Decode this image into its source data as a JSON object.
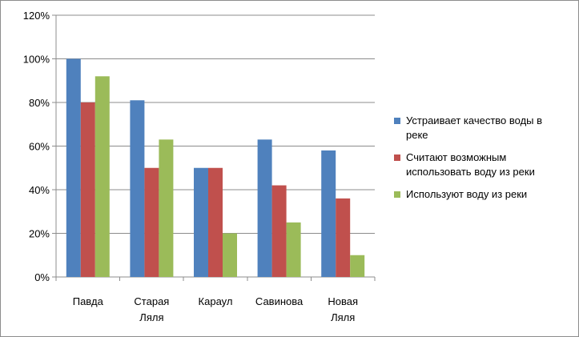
{
  "chart_data": {
    "type": "bar",
    "categories": [
      "Павда",
      "Старая Ляля",
      "Караул",
      "Савинова",
      "Новая Ляля"
    ],
    "category_lines": [
      [
        "Павда"
      ],
      [
        "Старая",
        "Ляля"
      ],
      [
        "Караул"
      ],
      [
        "Савинова"
      ],
      [
        "Новая",
        "Ляля"
      ]
    ],
    "series": [
      {
        "name": "Устраивает качество воды в реке",
        "legend_lines": [
          "Устраивает качество воды в",
          "реке"
        ],
        "color": "#4f81bd",
        "values": [
          100,
          81,
          50,
          63,
          58
        ]
      },
      {
        "name": "Считают возможным использовать воду из реки",
        "legend_lines": [
          "Считают возможным",
          "использовать воду из реки"
        ],
        "color": "#c0504d",
        "values": [
          80,
          50,
          50,
          42,
          36
        ]
      },
      {
        "name": "Используют воду из реки",
        "legend_lines": [
          "Используют воду из реки"
        ],
        "color": "#9bbb59",
        "values": [
          92,
          63,
          20,
          25,
          10
        ]
      }
    ],
    "yticks": [
      "0%",
      "20%",
      "40%",
      "60%",
      "80%",
      "100%",
      "120%"
    ],
    "ylim": [
      0,
      120
    ],
    "y_step": 20,
    "grid": true,
    "legend_position": "right"
  }
}
